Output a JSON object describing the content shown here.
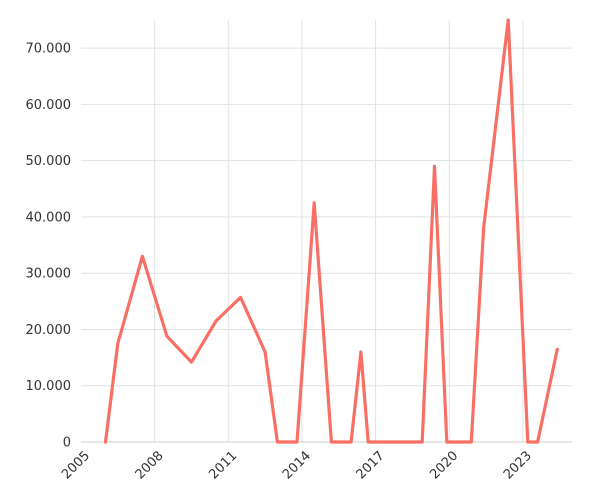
{
  "chart_data": {
    "type": "line",
    "title": "",
    "xlabel": "",
    "ylabel": "",
    "xlim": [
      2005,
      2025
    ],
    "ylim": [
      0,
      75000
    ],
    "grid": true,
    "legend": "none",
    "x_ticks": [
      2005,
      2008,
      2011,
      2014,
      2017,
      2020,
      2023
    ],
    "x_tick_labels": [
      "2005",
      "2008",
      "2011",
      "2014",
      "2017",
      "2020",
      "2023"
    ],
    "y_ticks": [
      0,
      10000,
      20000,
      30000,
      40000,
      50000,
      60000,
      70000
    ],
    "y_tick_labels": [
      "0",
      "10.000",
      "20.000",
      "30.000",
      "40.000",
      "50.000",
      "60.000",
      "70.000"
    ],
    "series": [
      {
        "color": "#f87065",
        "points": [
          {
            "x": 2006.0,
            "y": 0
          },
          {
            "x": 2006.5,
            "y": 17500
          },
          {
            "x": 2007.5,
            "y": 33000
          },
          {
            "x": 2008.5,
            "y": 18800
          },
          {
            "x": 2009.5,
            "y": 14200
          },
          {
            "x": 2010.5,
            "y": 21500
          },
          {
            "x": 2011.5,
            "y": 25700
          },
          {
            "x": 2012.5,
            "y": 16000
          },
          {
            "x": 2013.0,
            "y": 0
          },
          {
            "x": 2013.8,
            "y": 0
          },
          {
            "x": 2014.5,
            "y": 42500
          },
          {
            "x": 2015.2,
            "y": 0
          },
          {
            "x": 2016.0,
            "y": 0
          },
          {
            "x": 2016.4,
            "y": 16000
          },
          {
            "x": 2016.7,
            "y": 0
          },
          {
            "x": 2018.9,
            "y": 0
          },
          {
            "x": 2019.4,
            "y": 49000
          },
          {
            "x": 2019.9,
            "y": 0
          },
          {
            "x": 2020.9,
            "y": 0
          },
          {
            "x": 2021.4,
            "y": 38000
          },
          {
            "x": 2022.4,
            "y": 75000
          },
          {
            "x": 2023.2,
            "y": 0
          },
          {
            "x": 2023.6,
            "y": 0
          },
          {
            "x": 2024.4,
            "y": 16500
          }
        ]
      }
    ]
  }
}
